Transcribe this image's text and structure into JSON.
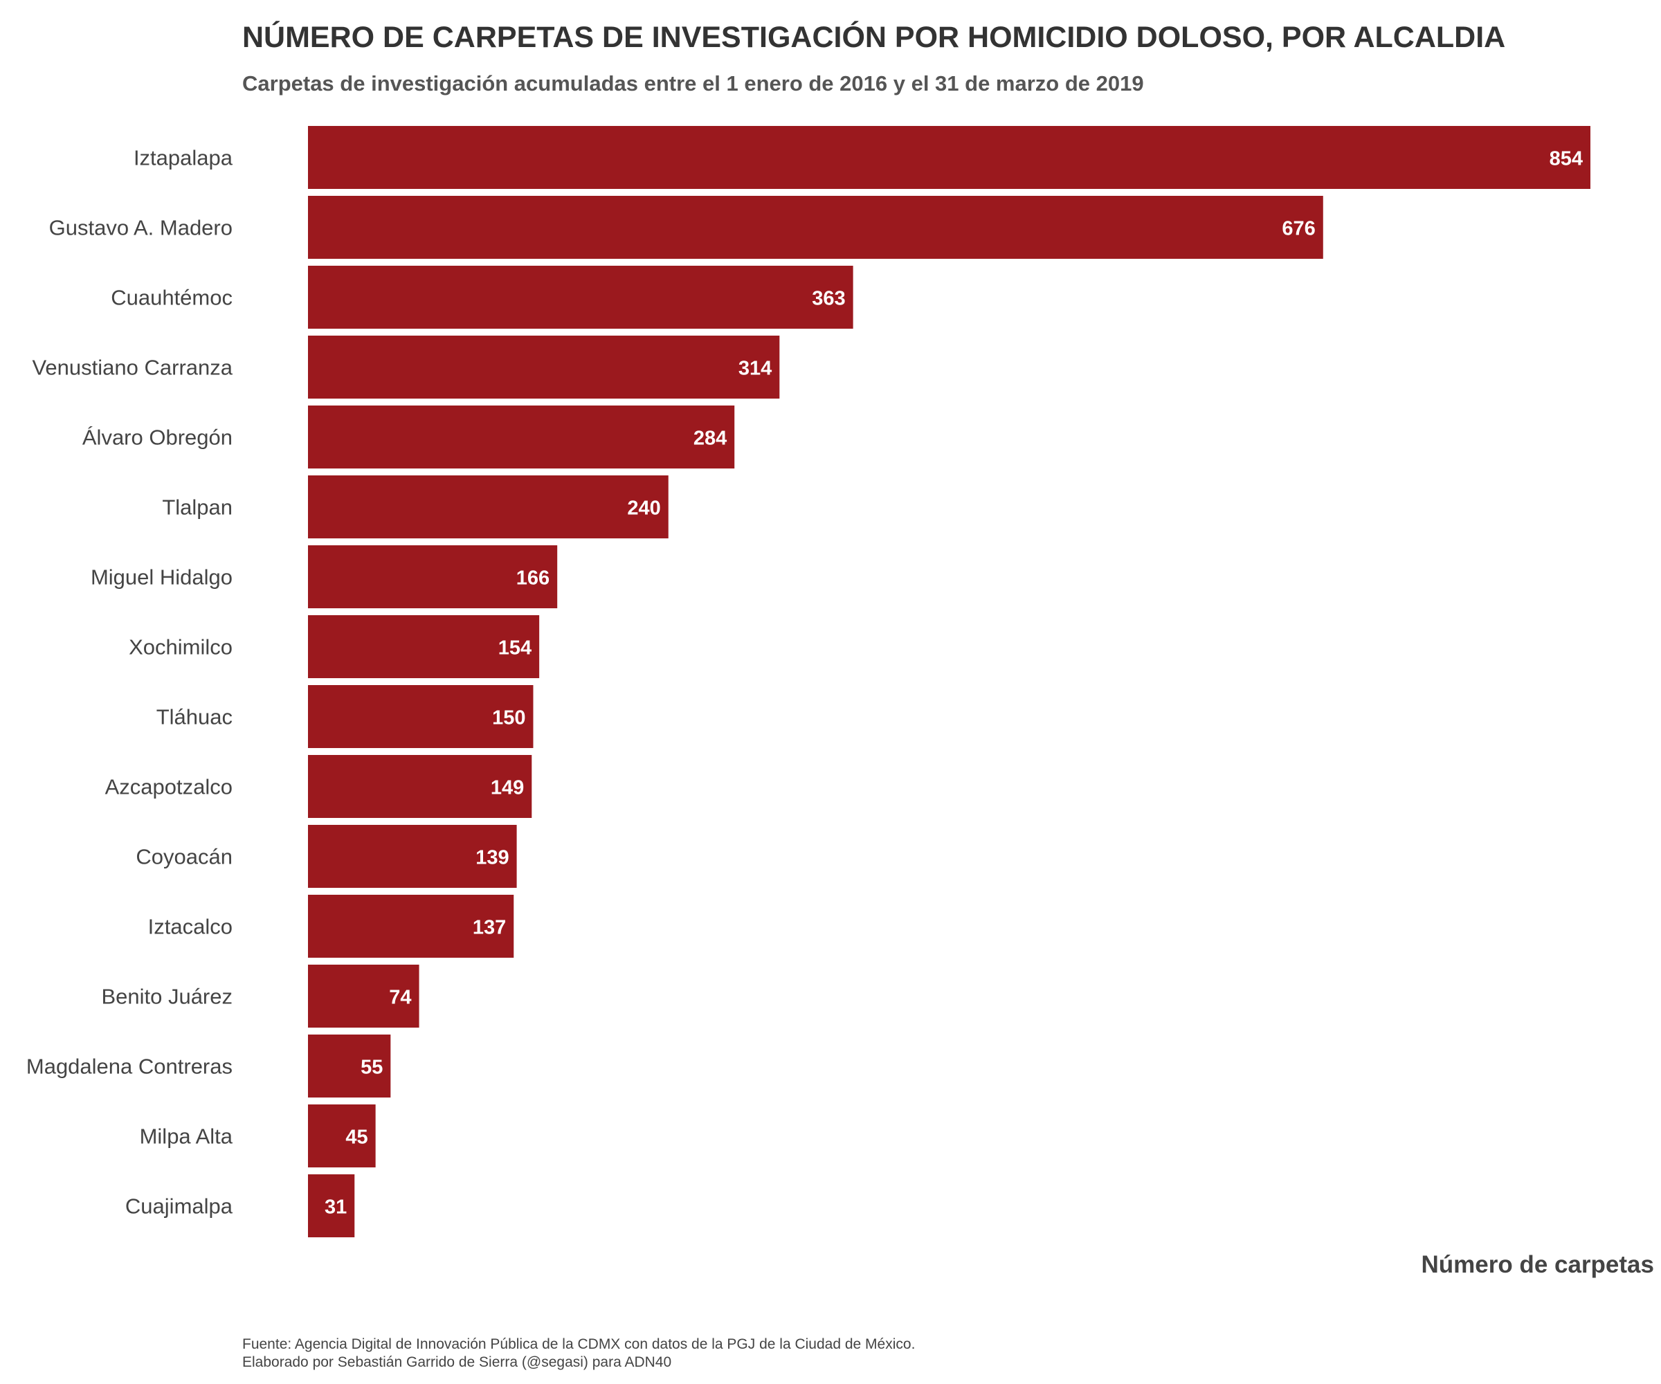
{
  "chart_data": {
    "type": "bar",
    "orientation": "horizontal",
    "title": "NÚMERO DE CARPETAS DE INVESTIGACIÓN POR HOMICIDIO DOLOSO, POR ALCALDIA",
    "subtitle": "Carpetas de investigación acumuladas entre el 1 enero de 2016 y el 31 de marzo de 2019",
    "xlabel": "Número de carpetas",
    "ylabel": "",
    "categories": [
      "Iztapalapa",
      "Gustavo A. Madero",
      "Cuauhtémoc",
      "Venustiano Carranza",
      "Álvaro Obregón",
      "Tlalpan",
      "Miguel Hidalgo",
      "Xochimilco",
      "Tláhuac",
      "Azcapotzalco",
      "Coyoacán",
      "Iztacalco",
      "Benito Juárez",
      "Magdalena Contreras",
      "Milpa Alta",
      "Cuajimalpa"
    ],
    "values": [
      854,
      676,
      363,
      314,
      284,
      240,
      166,
      154,
      150,
      149,
      139,
      137,
      74,
      55,
      45,
      31
    ],
    "xlim": [
      0,
      854
    ],
    "bar_color": "#9b191e",
    "label_color": "#ffffff",
    "grid": false,
    "legend": "none"
  },
  "caption": {
    "line1": "Fuente: Agencia Digital de Innovación Pública de la CDMX con datos de la PGJ de la Ciudad de México.",
    "line2": "Elaborado por Sebastián Garrido de Sierra (@segasi) para ADN40"
  }
}
